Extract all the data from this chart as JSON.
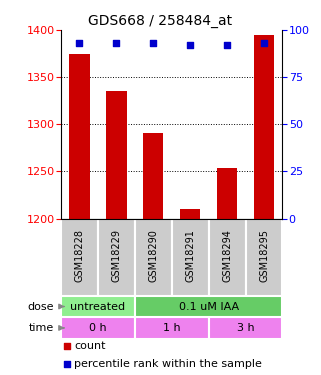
{
  "title": "GDS668 / 258484_at",
  "samples": [
    "GSM18228",
    "GSM18229",
    "GSM18290",
    "GSM18291",
    "GSM18294",
    "GSM18295"
  ],
  "bar_values": [
    1375,
    1335,
    1291,
    1210,
    1254,
    1395
  ],
  "dot_values": [
    93,
    93,
    93,
    92,
    92,
    93
  ],
  "ylim_left": [
    1200,
    1400
  ],
  "ylim_right": [
    0,
    100
  ],
  "yticks_left": [
    1200,
    1250,
    1300,
    1350,
    1400
  ],
  "yticks_right": [
    0,
    25,
    50,
    75,
    100
  ],
  "bar_color": "#cc0000",
  "dot_color": "#0000cc",
  "dose_labels": [
    {
      "text": "untreated",
      "span": [
        0,
        2
      ],
      "color": "#90ee90"
    },
    {
      "text": "0.1 uM IAA",
      "span": [
        2,
        6
      ],
      "color": "#66cc66"
    }
  ],
  "time_labels": [
    {
      "text": "0 h",
      "span": [
        0,
        2
      ],
      "color": "#ee82ee"
    },
    {
      "text": "1 h",
      "span": [
        2,
        4
      ],
      "color": "#ee82ee"
    },
    {
      "text": "3 h",
      "span": [
        4,
        6
      ],
      "color": "#ee82ee"
    }
  ],
  "dose_row_label": "dose",
  "time_row_label": "time",
  "legend_count": "count",
  "legend_percentile": "percentile rank within the sample",
  "sample_box_color": "#cccccc",
  "title_fontsize": 10,
  "tick_fontsize": 8,
  "label_fontsize": 8,
  "annotation_fontsize": 8,
  "sample_fontsize": 7
}
